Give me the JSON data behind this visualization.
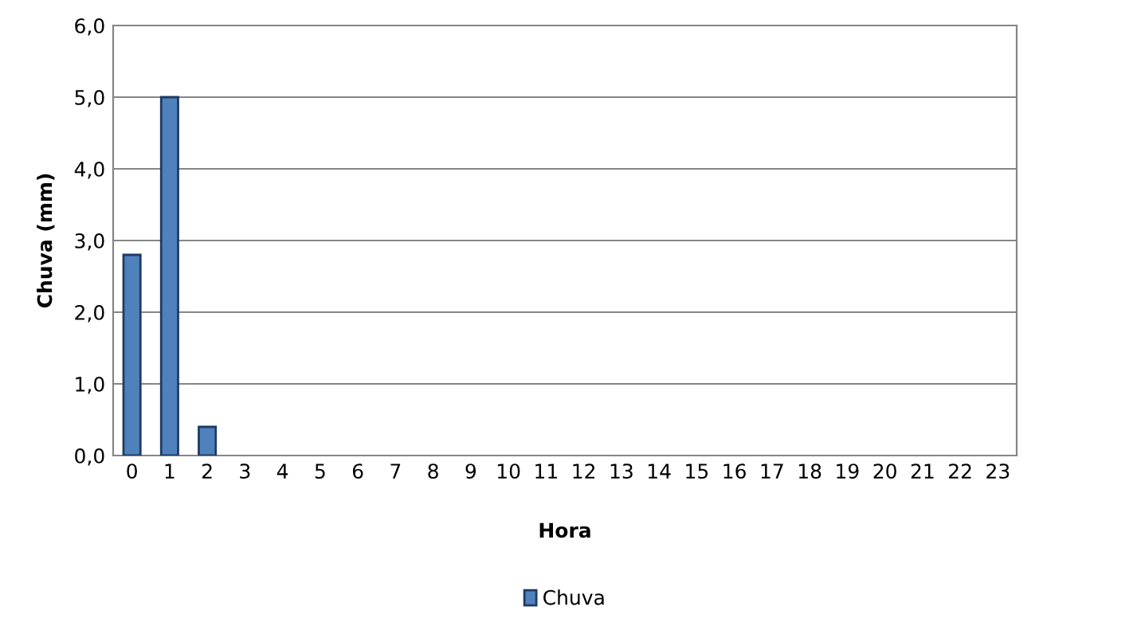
{
  "chart_data": {
    "type": "bar",
    "categories": [
      "0",
      "1",
      "2",
      "3",
      "4",
      "5",
      "6",
      "7",
      "8",
      "9",
      "10",
      "11",
      "12",
      "13",
      "14",
      "15",
      "16",
      "17",
      "18",
      "19",
      "20",
      "21",
      "22",
      "23"
    ],
    "series": [
      {
        "name": "Chuva",
        "color": "#4f81bd",
        "values": [
          2.8,
          5.0,
          0.4,
          0,
          0,
          0,
          0,
          0,
          0,
          0,
          0,
          0,
          0,
          0,
          0,
          0,
          0,
          0,
          0,
          0,
          0,
          0,
          0,
          0
        ]
      }
    ],
    "xlabel": "Hora",
    "ylabel": "Chuva (mm)",
    "ylim": [
      0,
      6
    ],
    "yticks": [
      {
        "value": 0,
        "label": "0,0"
      },
      {
        "value": 1,
        "label": "1,0"
      },
      {
        "value": 2,
        "label": "2,0"
      },
      {
        "value": 3,
        "label": "3,0"
      },
      {
        "value": 4,
        "label": "4,0"
      },
      {
        "value": 5,
        "label": "5,0"
      },
      {
        "value": 6,
        "label": "6,0"
      }
    ],
    "grid": "y",
    "legend": "bottom"
  }
}
